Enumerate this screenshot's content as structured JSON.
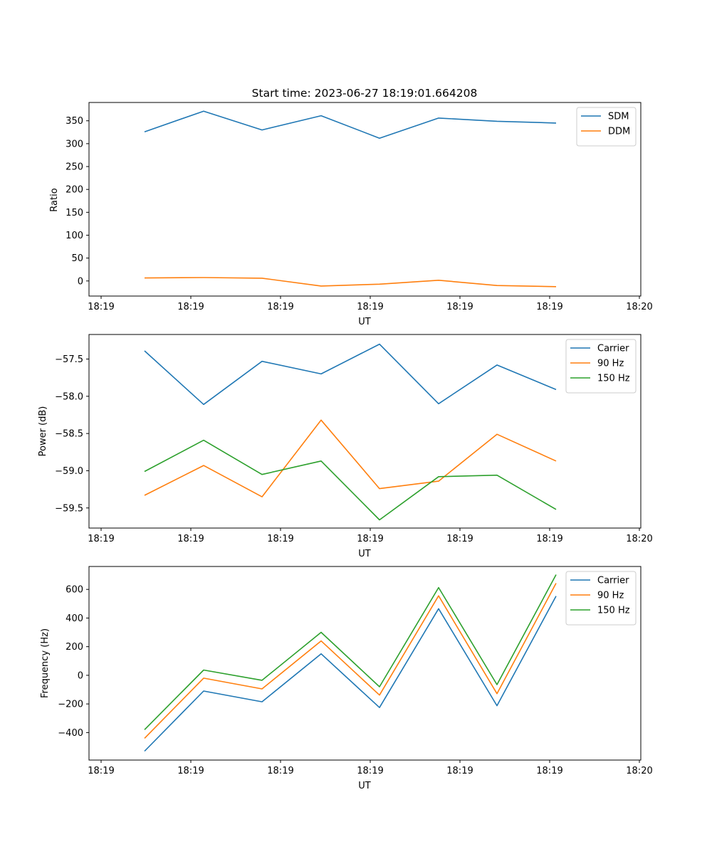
{
  "chart_data": [
    {
      "type": "line",
      "title": "Start time: 2023-06-27 18:19:01.664208",
      "xlabel": "UT",
      "ylabel": "Ratio",
      "x_ticks": [
        "18:19",
        "18:19",
        "18:19",
        "18:19",
        "18:19",
        "18:19",
        "18:20"
      ],
      "y_ticks": [
        "0",
        "50",
        "100",
        "150",
        "200",
        "250",
        "300",
        "350"
      ],
      "ylim": [
        -33,
        390
      ],
      "legend_position": "top-right",
      "grid": false,
      "series": [
        {
          "name": "SDM",
          "color": "#1f77b4",
          "values": [
            326,
            371,
            330,
            361,
            312,
            356,
            349,
            345
          ]
        },
        {
          "name": "DDM",
          "color": "#ff7f0e",
          "values": [
            6.5,
            7.5,
            6,
            -11,
            -7,
            1.5,
            -10,
            -12.5
          ]
        }
      ]
    },
    {
      "type": "line",
      "title": "",
      "xlabel": "UT",
      "ylabel": "Power (dB)",
      "x_ticks": [
        "18:19",
        "18:19",
        "18:19",
        "18:19",
        "18:19",
        "18:19",
        "18:20"
      ],
      "y_ticks": [
        "−59.5",
        "−59.0",
        "−58.5",
        "−58.0",
        "−57.5"
      ],
      "ylim": [
        -59.77,
        -57.17
      ],
      "legend_position": "top-right",
      "grid": false,
      "series": [
        {
          "name": "Carrier",
          "color": "#1f77b4",
          "values": [
            -57.39,
            -58.11,
            -57.53,
            -57.7,
            -57.3,
            -58.1,
            -57.58,
            -57.91
          ]
        },
        {
          "name": "90 Hz",
          "color": "#ff7f0e",
          "values": [
            -59.33,
            -58.93,
            -59.35,
            -58.32,
            -59.24,
            -59.14,
            -58.51,
            -58.87
          ]
        },
        {
          "name": "150 Hz",
          "color": "#2ca02c",
          "values": [
            -59.01,
            -58.59,
            -59.05,
            -58.87,
            -59.66,
            -59.08,
            -59.06,
            -59.52
          ]
        }
      ]
    },
    {
      "type": "line",
      "title": "",
      "xlabel": "UT",
      "ylabel": "Frequency (Hz)",
      "x_ticks": [
        "18:19",
        "18:19",
        "18:19",
        "18:19",
        "18:19",
        "18:19",
        "18:20"
      ],
      "y_ticks": [
        "−400",
        "−200",
        "0",
        "200",
        "400",
        "600"
      ],
      "ylim": [
        -592,
        760
      ],
      "legend_position": "top-right",
      "grid": false,
      "series": [
        {
          "name": "Carrier",
          "color": "#1f77b4",
          "values": [
            -530,
            -110,
            -185,
            150,
            -225,
            465,
            -212,
            553
          ]
        },
        {
          "name": "90 Hz",
          "color": "#ff7f0e",
          "values": [
            -440,
            -20,
            -95,
            240,
            -138,
            555,
            -128,
            643
          ]
        },
        {
          "name": "150 Hz",
          "color": "#2ca02c",
          "values": [
            -380,
            37,
            -35,
            300,
            -80,
            613,
            -65,
            703
          ]
        }
      ]
    }
  ]
}
